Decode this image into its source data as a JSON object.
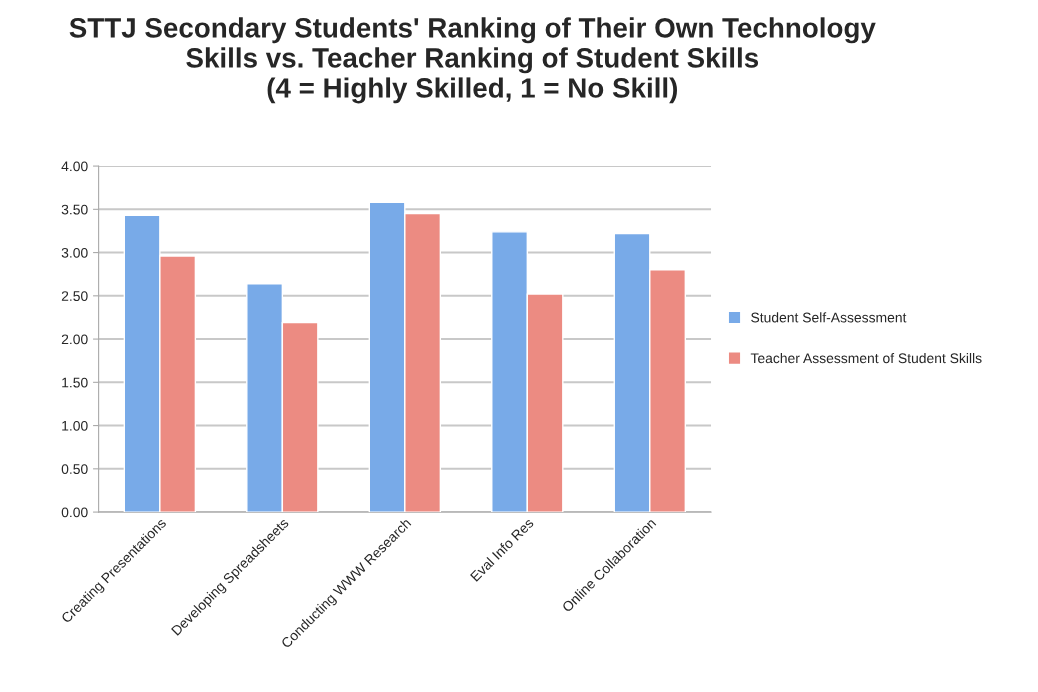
{
  "chart_data": {
    "type": "bar",
    "title": "STTJ Secondary Students' Ranking of Their Own Technology\nSkills vs. Teacher Ranking of Student Skills\n(4 = Highly Skilled, 1 = No Skill)",
    "categories": [
      "Creating Presentations",
      "Developing Spreadsheets",
      "Conducting WWW Research",
      "Eval Info Res",
      "Online Collaboration"
    ],
    "series": [
      {
        "name": "Student Self-Assessment",
        "color": "#78aae8",
        "values": [
          3.43,
          2.64,
          3.58,
          3.24,
          3.22
        ]
      },
      {
        "name": "Teacher Assessment of Student Skills",
        "color": "#ec8b82",
        "values": [
          2.96,
          2.19,
          3.45,
          2.52,
          2.8
        ]
      }
    ],
    "ylim": [
      0,
      4
    ],
    "yticks": [
      {
        "value": 0,
        "label": "0.00"
      },
      {
        "value": 0.5,
        "label": "0.50"
      },
      {
        "value": 1,
        "label": "1.00"
      },
      {
        "value": 1.5,
        "label": "1.50"
      },
      {
        "value": 2,
        "label": "2.00"
      },
      {
        "value": 2.5,
        "label": "2.50"
      },
      {
        "value": 3,
        "label": "3.00"
      },
      {
        "value": 3.5,
        "label": "3.50"
      },
      {
        "value": 4,
        "label": "4.00"
      }
    ],
    "grid": "y",
    "legend": "right"
  }
}
